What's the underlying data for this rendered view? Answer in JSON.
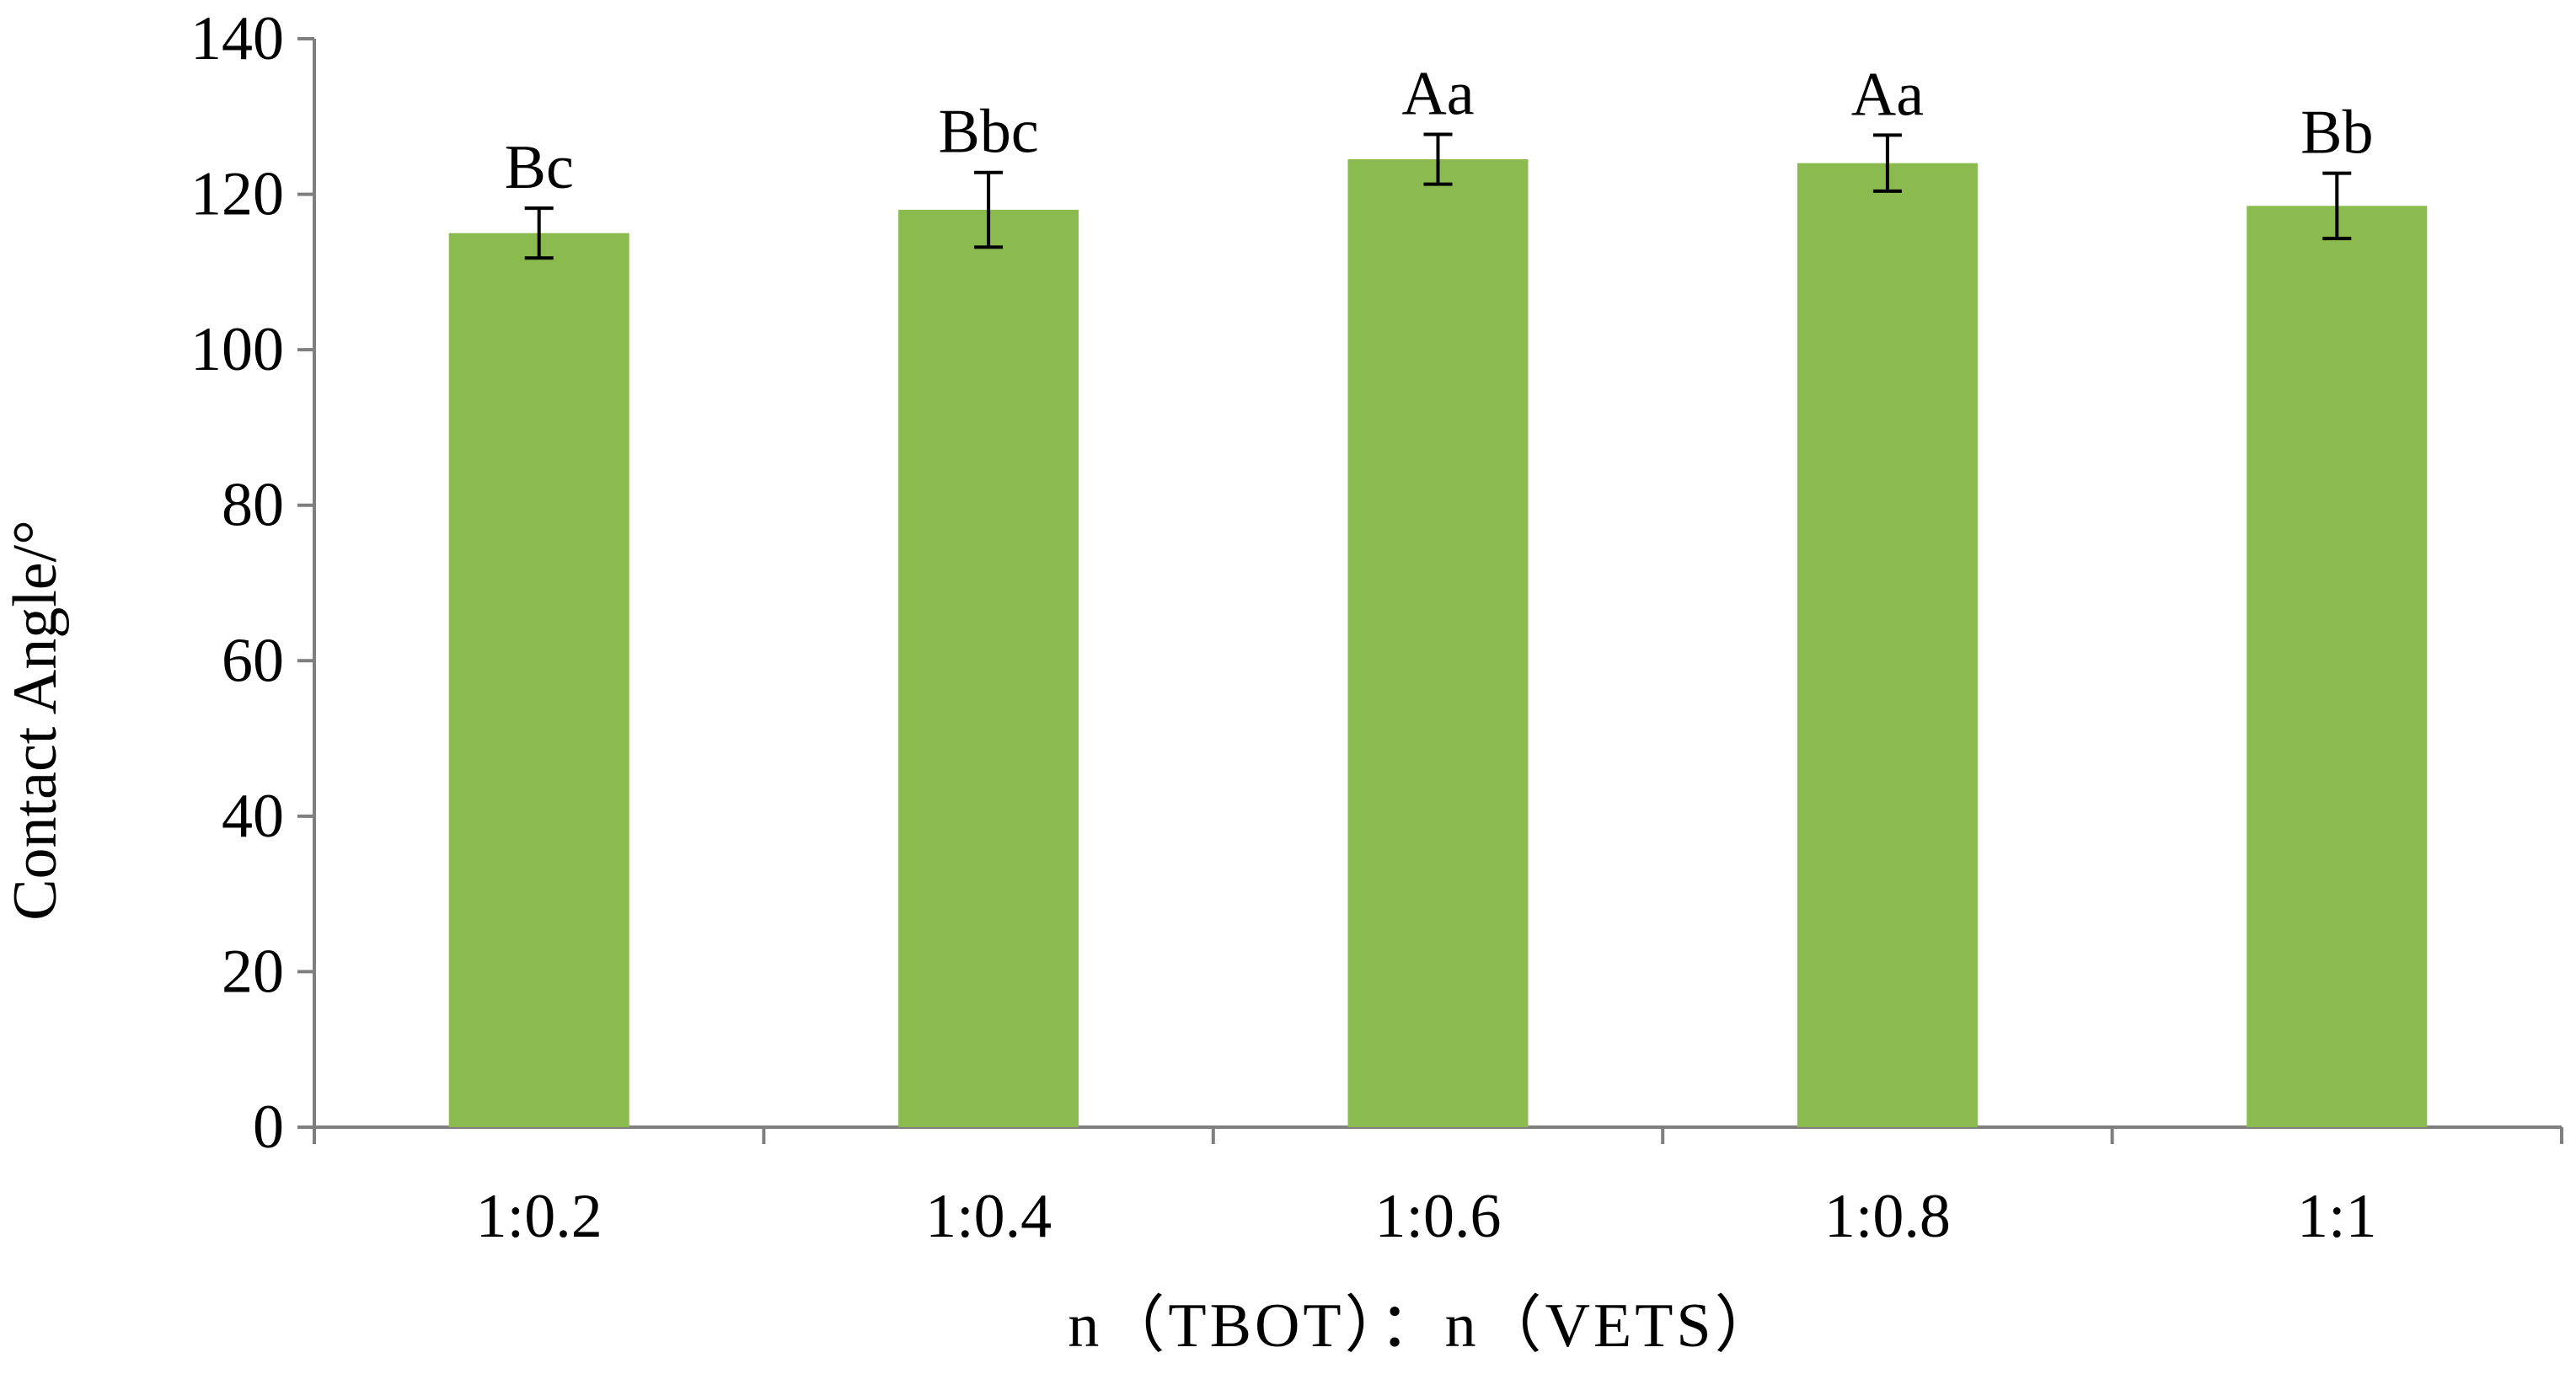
{
  "chart_data": {
    "type": "bar",
    "categories": [
      "1:0.2",
      "1:0.4",
      "1:0.6",
      "1:0.8",
      "1:1"
    ],
    "series": [
      {
        "name": "Contact Angle",
        "values": [
          115,
          118,
          124.5,
          124,
          118.5
        ],
        "errors": [
          3.2,
          4.8,
          3.2,
          3.6,
          4.2
        ],
        "labels": [
          "Bc",
          "Bbc",
          "Aa",
          "Aa",
          "Bb"
        ]
      }
    ],
    "title": "",
    "xlabel": "n（TBOT）：n（VETS）",
    "ylabel": "Contact  Angle/°",
    "ylim": [
      0,
      140
    ],
    "yticks": [
      0,
      20,
      40,
      60,
      80,
      100,
      120,
      140
    ],
    "grid": false,
    "legend": "none",
    "colors": {
      "bar": "#8bba4f",
      "axis": "#7f7f7f",
      "text": "#000000",
      "error_bar": "#000000"
    }
  }
}
